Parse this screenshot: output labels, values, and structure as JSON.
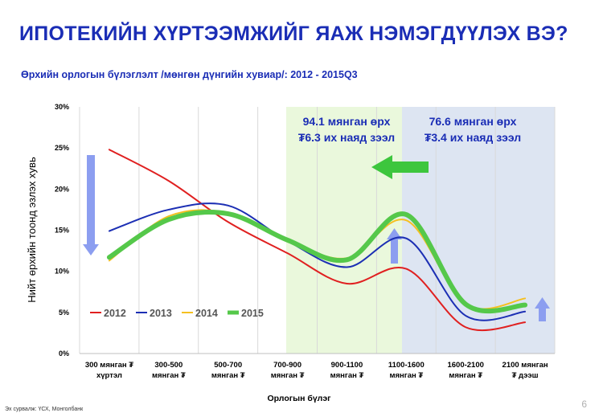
{
  "slide": {
    "title": "ИПОТЕКИЙН ХҮРТЭЭМЖИЙГ ЯАЖ НЭМЭГДҮҮЛЭХ ВЭ?",
    "subtitle": "Өрхийн орлогын бүлэглэлт /мөнгөн дүнгийн хувиар/: 2012 - 2015Q3",
    "source": "Эх сурвалж: ҮСХ, Монголбанк",
    "page_number": "6"
  },
  "annotations": {
    "green_box": {
      "line1": "94.1 мянган өрх",
      "line2": "₮6.3 их наяд зээл"
    },
    "blue_box": {
      "line1": "76.6 мянган өрх",
      "line2": "₮3.4 их наяд зээл"
    }
  },
  "colors": {
    "title": "#1a2db5",
    "green_band": "#eaf8dc",
    "blue_band": "#dde5f2",
    "arrow_green": "#3dc63d",
    "arrow_blue": "#8c9ef0",
    "s2012": "#e02020",
    "s2013": "#1c2fb4",
    "s2014": "#f5c020",
    "s2015": "#55c84a"
  },
  "chart_data": {
    "type": "line",
    "ylabel": "Нийт өрхийн тоонд эзлэх хувь",
    "xlabel": "Орлогын бүлэг",
    "ylim": [
      0,
      30
    ],
    "yticks": [
      "0%",
      "5%",
      "10%",
      "15%",
      "20%",
      "25%",
      "30%"
    ],
    "categories": [
      [
        "300 мянган ₮",
        "хүртэл"
      ],
      [
        "300-500",
        "мянган ₮"
      ],
      [
        "500-700",
        "мянган ₮"
      ],
      [
        "700-900",
        "мянган ₮"
      ],
      [
        "900-1100",
        "мянган ₮"
      ],
      [
        "1100-1600",
        "мянган ₮"
      ],
      [
        "1600-2100",
        "мянган ₮"
      ],
      [
        "2100  мянган",
        "₮ дээш"
      ]
    ],
    "grid": "vertical",
    "legend_position": "bottom-left",
    "series": [
      {
        "name": "2012",
        "color": "#e02020",
        "width": 2,
        "values": [
          24.8,
          21.0,
          16.0,
          12.2,
          8.5,
          10.3,
          3.2,
          3.8
        ]
      },
      {
        "name": "2013",
        "color": "#1c2fb4",
        "width": 2,
        "values": [
          14.9,
          17.5,
          18.0,
          13.7,
          10.5,
          14.0,
          4.6,
          5.1
        ]
      },
      {
        "name": "2014",
        "color": "#f5c020",
        "width": 2,
        "values": [
          11.3,
          16.7,
          17.1,
          13.8,
          11.6,
          16.2,
          6.0,
          6.7
        ]
      },
      {
        "name": "2015",
        "color": "#55c84a",
        "width": 6,
        "values": [
          11.7,
          16.3,
          17.0,
          13.8,
          11.4,
          16.9,
          6.0,
          5.9
        ]
      }
    ]
  }
}
